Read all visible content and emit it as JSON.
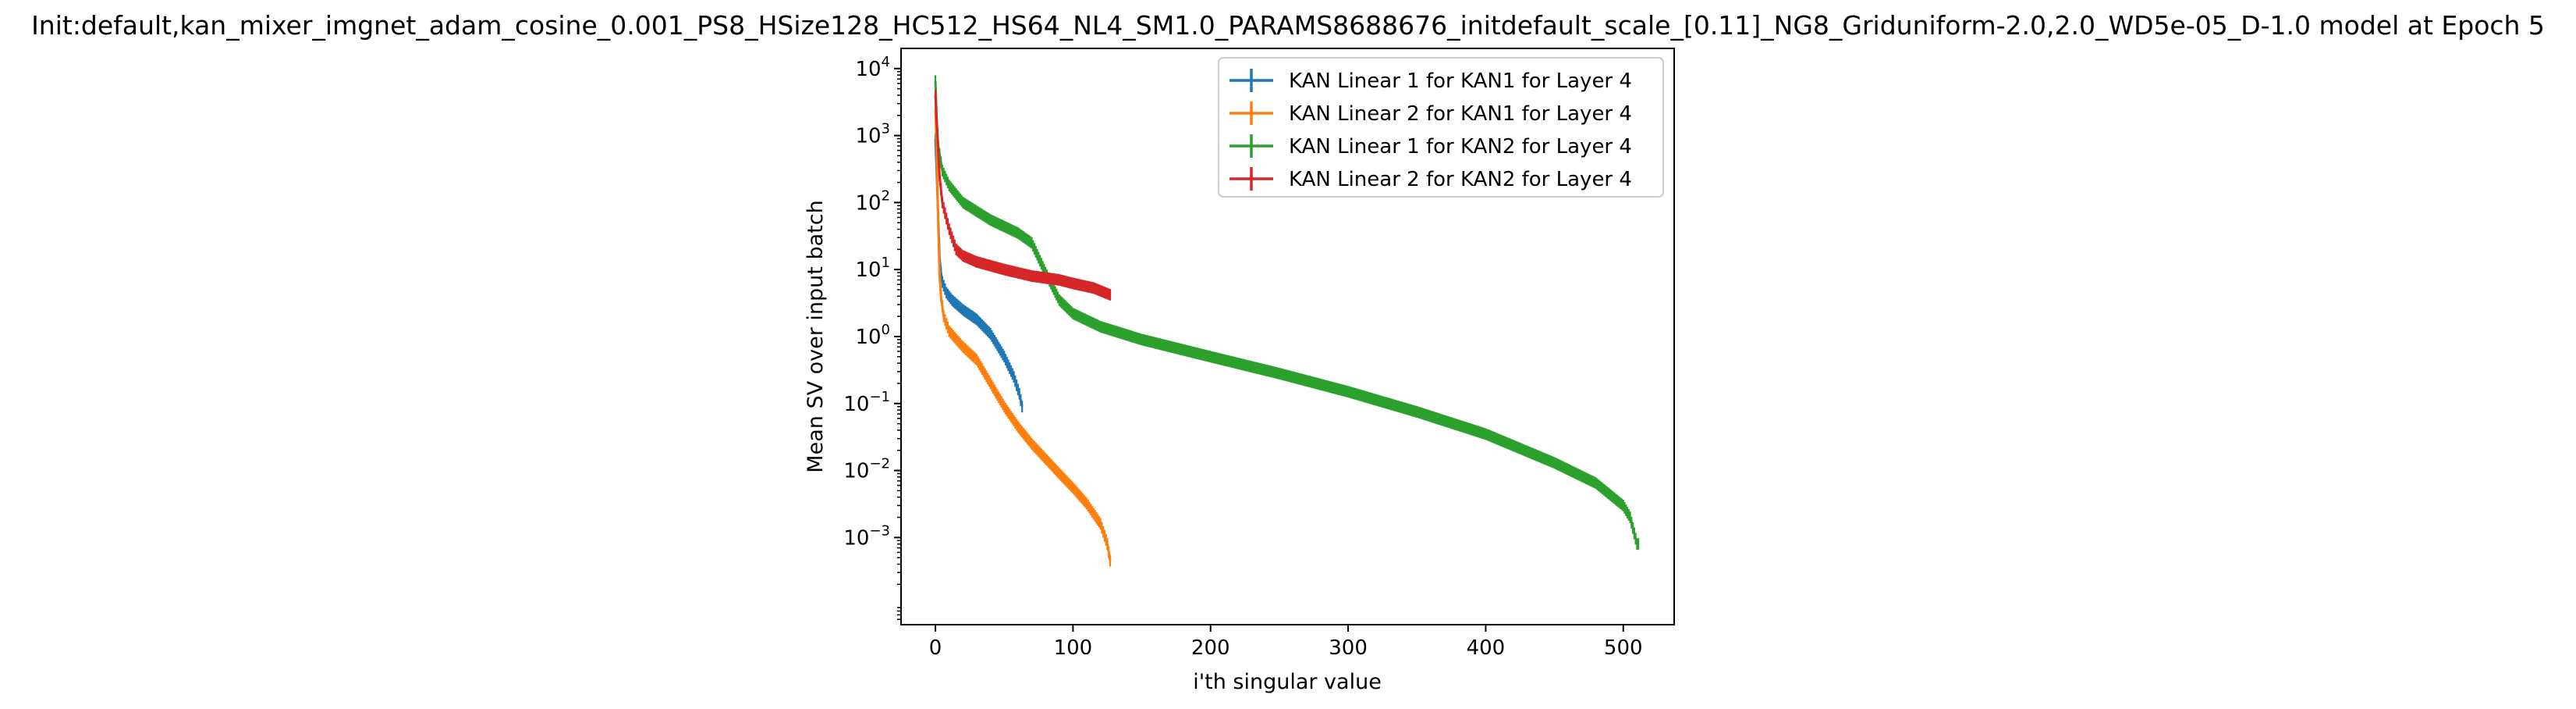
{
  "chart_data": {
    "type": "line",
    "title": "Init:default,kan_mixer_imgnet_adam_cosine_0.001_PS8_HSize128_HC512_HS64_NL4_SM1.0_PARAMS8688676_initdefault_scale_[0.11]_NG8_Griduniform-2.0,2.0_WD5e-05_D-1.0 model at Epoch 5",
    "xlabel": "i'th singular value",
    "ylabel": "Mean SV over input batch",
    "xlim": [
      -25,
      537
    ],
    "ylim": [
      5e-05,
      20000
    ],
    "yscale": "log",
    "grid": false,
    "legend_position": "top-right",
    "x_ticks": [
      0,
      100,
      200,
      300,
      400,
      500
    ],
    "y_ticks": [
      {
        "base": "10",
        "exp": "4",
        "value": 10000
      },
      {
        "base": "10",
        "exp": "3",
        "value": 1000
      },
      {
        "base": "10",
        "exp": "2",
        "value": 100
      },
      {
        "base": "10",
        "exp": "1",
        "value": 10
      },
      {
        "base": "10",
        "exp": "0",
        "value": 1
      },
      {
        "base": "10",
        "exp": "−1",
        "value": 0.1
      },
      {
        "base": "10",
        "exp": "−2",
        "value": 0.01
      },
      {
        "base": "10",
        "exp": "−3",
        "value": 0.001
      }
    ],
    "series": [
      {
        "name": "KAN Linear 1 for KAN1 for Layer 4",
        "color": "#1f77b4",
        "n": 64,
        "points": [
          [
            0,
            900
          ],
          [
            1,
            250
          ],
          [
            2,
            60
          ],
          [
            3,
            15
          ],
          [
            4,
            9
          ],
          [
            5,
            6.5
          ],
          [
            8,
            4.5
          ],
          [
            12,
            3.5
          ],
          [
            20,
            2.5
          ],
          [
            30,
            1.8
          ],
          [
            40,
            1.1
          ],
          [
            50,
            0.5
          ],
          [
            57,
            0.25
          ],
          [
            61,
            0.14
          ],
          [
            63,
            0.09
          ]
        ]
      },
      {
        "name": "KAN Linear 2 for KAN1 for Layer 4",
        "color": "#ff7f0e",
        "n": 128,
        "points": [
          [
            0,
            2500
          ],
          [
            1,
            500
          ],
          [
            2,
            50
          ],
          [
            3,
            8
          ],
          [
            4,
            4
          ],
          [
            6,
            2
          ],
          [
            10,
            1.2
          ],
          [
            20,
            0.7
          ],
          [
            30,
            0.45
          ],
          [
            35,
            0.3
          ],
          [
            40,
            0.2
          ],
          [
            50,
            0.09
          ],
          [
            60,
            0.045
          ],
          [
            70,
            0.025
          ],
          [
            80,
            0.015
          ],
          [
            90,
            0.009
          ],
          [
            100,
            0.0055
          ],
          [
            110,
            0.0032
          ],
          [
            120,
            0.0016
          ],
          [
            125,
            0.0008
          ],
          [
            127,
            0.00045
          ]
        ]
      },
      {
        "name": "KAN Linear 1 for KAN2 for Layer 4",
        "color": "#2ca02c",
        "n": 512,
        "points": [
          [
            0,
            6500
          ],
          [
            1,
            1500
          ],
          [
            2,
            700
          ],
          [
            5,
            300
          ],
          [
            10,
            180
          ],
          [
            20,
            100
          ],
          [
            40,
            55
          ],
          [
            60,
            35
          ],
          [
            70,
            25
          ],
          [
            80,
            9
          ],
          [
            90,
            3.5
          ],
          [
            100,
            2.2
          ],
          [
            120,
            1.4
          ],
          [
            150,
            0.9
          ],
          [
            200,
            0.5
          ],
          [
            250,
            0.28
          ],
          [
            300,
            0.15
          ],
          [
            350,
            0.075
          ],
          [
            400,
            0.035
          ],
          [
            450,
            0.013
          ],
          [
            480,
            0.0065
          ],
          [
            500,
            0.003
          ],
          [
            505,
            0.002
          ],
          [
            510,
            0.0008
          ]
        ]
      },
      {
        "name": "KAN Linear 2 for KAN2 for Layer 4",
        "color": "#d62728",
        "n": 128,
        "points": [
          [
            0,
            4000
          ],
          [
            1,
            1500
          ],
          [
            2,
            600
          ],
          [
            3,
            250
          ],
          [
            5,
            100
          ],
          [
            10,
            40
          ],
          [
            15,
            20
          ],
          [
            20,
            16
          ],
          [
            30,
            13
          ],
          [
            50,
            10
          ],
          [
            70,
            8
          ],
          [
            90,
            7
          ],
          [
            100,
            6.2
          ],
          [
            115,
            5.3
          ],
          [
            127,
            4.2
          ]
        ]
      }
    ]
  }
}
